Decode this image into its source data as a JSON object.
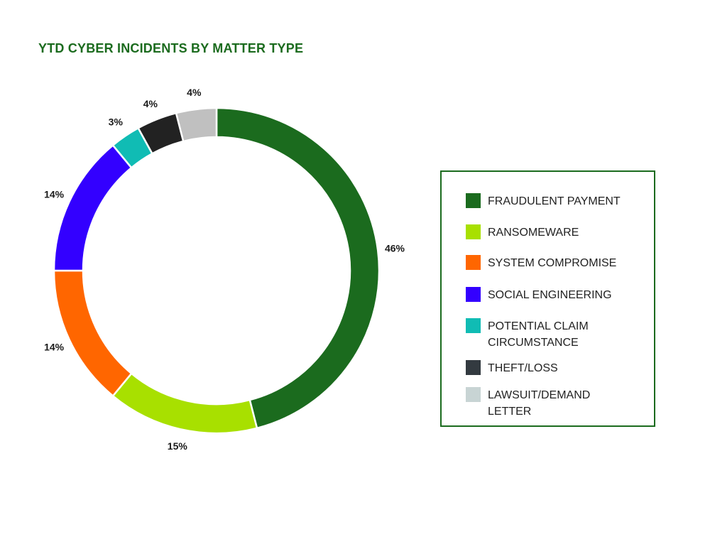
{
  "colors": {
    "title": "#1b6b1e",
    "legend_border": "#1b6b1e",
    "label_text": "#1a1a1a"
  },
  "chart_data": {
    "type": "pie",
    "donut": true,
    "title": "YTD CYBER INCIDENTS BY MATTER TYPE",
    "unit": "%",
    "legend_position": "right",
    "categories": [
      "FRAUDULENT PAYMENT",
      "RANSOMEWARE",
      "SYSTEM COMPROMISE",
      "SOCIAL ENGINEERING",
      "POTENTIAL CLAIM CIRCUMSTANCE",
      "THEFT/LOSS",
      "LAWSUIT/DEMAND LETTER"
    ],
    "values": [
      46,
      15,
      14,
      14,
      3,
      4,
      4
    ],
    "data_labels": [
      "46%",
      "15%",
      "14%",
      "14%",
      "3%",
      "4%",
      "4%"
    ],
    "slice_colors": [
      "#1b6b1e",
      "#a8e000",
      "#ff6600",
      "#3300ff",
      "#10bcb4",
      "#222222",
      "#c0c0c0"
    ],
    "legend": [
      {
        "label": "FRAUDULENT PAYMENT",
        "color": "#1b6b1e"
      },
      {
        "label": "RANSOMEWARE",
        "color": "#a8e000"
      },
      {
        "label": "SYSTEM COMPROMISE",
        "color": "#ff6600"
      },
      {
        "label": "SOCIAL ENGINEERING",
        "color": "#3300ff"
      },
      {
        "label": "POTENTIAL CLAIM\nCIRCUMSTANCE",
        "color": "#10bcb4"
      },
      {
        "label": "THEFT/LOSS",
        "color": "#333a40"
      },
      {
        "label": "LAWSUIT/DEMAND LETTER",
        "color": "#c8d4d4"
      }
    ]
  }
}
